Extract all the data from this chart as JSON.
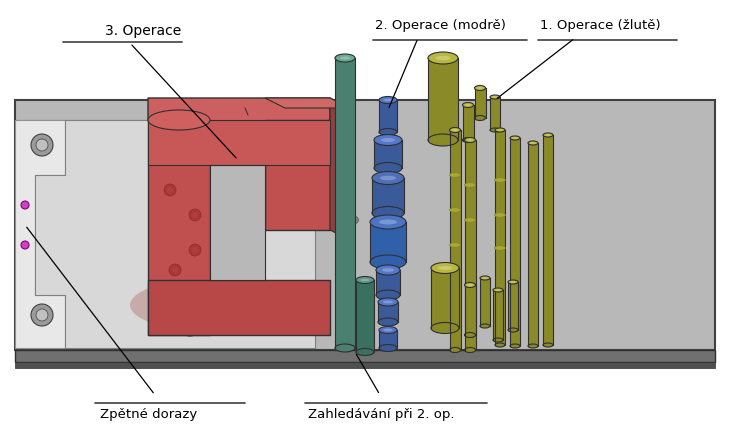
{
  "bg_color": "#ffffff",
  "plate_top_color": "#c8c8c8",
  "plate_face_color": "#a8a8a8",
  "plate_side_color": "#888888",
  "plate_border": "#303030",
  "red_main": "#c05050",
  "red_light": "#d07070",
  "red_dark": "#8b3030",
  "red_shadow": "#b04040",
  "green_body": "#4a8a78",
  "green_top": "#6aaa98",
  "green_light": "#7abfab",
  "blue_body": "#3a5fa0",
  "blue_top": "#5577cc",
  "blue_light": "#6688dd",
  "yellow_body": "#8a8a28",
  "yellow_top": "#b8b840",
  "yellow_light": "#cccc55",
  "yellow_body2": "#9a9a35",
  "label_3op": "3. Operace",
  "label_2op": "2. Operace (modrě)",
  "label_1op": "1. Operace (žlutě)",
  "label_zpetne": "Zpětné dorazy",
  "label_zahledavani": "Zahledávání při 2. op.",
  "fontsize_title": 10,
  "fontsize_label": 9.5
}
